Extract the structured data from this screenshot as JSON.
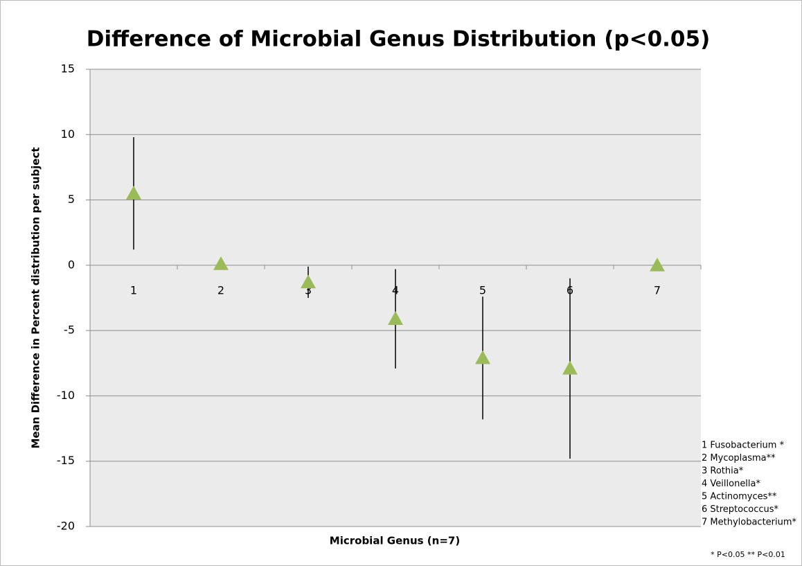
{
  "chart_data": {
    "type": "errorbar-scatter",
    "title": "Difference of Microbial Genus Distribution (p<0.05)",
    "x_label": "Microbial Genus (n=7)",
    "y_label": "Mean Difference in Percent distribution per subject",
    "categories": [
      "1",
      "2",
      "3",
      "4",
      "5",
      "6",
      "7"
    ],
    "values": [
      5.5,
      0.1,
      -1.3,
      -4.1,
      -7.1,
      -7.9,
      0
    ],
    "errors": [
      4.3,
      0,
      1.2,
      3.8,
      4.7,
      6.9,
      0
    ],
    "color": "#9bbb59",
    "ylim": [
      -20,
      15
    ],
    "yticks": [
      15,
      10,
      5,
      0,
      -5,
      -10,
      -15,
      -20
    ],
    "grid": true,
    "notes": [
      "1 Fusobacterium *",
      "2 Mycoplasma**",
      "3 Rothia*",
      "4 Veillonella*",
      "5 Actinomyces**",
      "6 Streptococcus*",
      "7 Methylobacterium*"
    ],
    "footnote": "* P<0.05  ** P<0.01"
  }
}
